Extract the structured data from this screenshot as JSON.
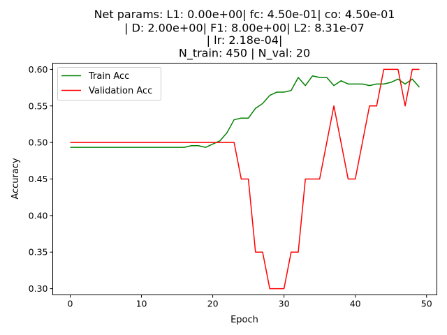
{
  "chart_data": {
    "type": "line",
    "title_lines": [
      "Net params: L1: 0.00e+00| fc: 4.50e-01| co: 4.50e-01",
      "| D: 2.00e+00| F1: 8.00e+00| L2: 8.31e-07",
      "| lr: 2.18e-04|",
      "N_train: 450 | N_val: 20"
    ],
    "xlabel": "Epoch",
    "ylabel": "Accuracy",
    "xlim": [
      -2.45,
      51.45
    ],
    "ylim": [
      0.2915,
      0.6085
    ],
    "x_ticks": [
      0,
      10,
      20,
      30,
      40,
      50
    ],
    "y_ticks": [
      0.3,
      0.35,
      0.4,
      0.45,
      0.5,
      0.55,
      0.6
    ],
    "y_tick_labels": [
      "0.30",
      "0.35",
      "0.40",
      "0.45",
      "0.50",
      "0.55",
      "0.60"
    ],
    "grid": false,
    "legend_position": "upper-left",
    "x": [
      0,
      1,
      2,
      3,
      4,
      5,
      6,
      7,
      8,
      9,
      10,
      11,
      12,
      13,
      14,
      15,
      16,
      17,
      18,
      19,
      20,
      21,
      22,
      23,
      24,
      25,
      26,
      27,
      28,
      29,
      30,
      31,
      32,
      33,
      34,
      35,
      36,
      37,
      38,
      39,
      40,
      41,
      42,
      43,
      44,
      45,
      46,
      47,
      48,
      49
    ],
    "series": [
      {
        "name": "Train Acc",
        "color": "#008000",
        "values": [
          0.4933,
          0.4933,
          0.4933,
          0.4933,
          0.4933,
          0.4933,
          0.4933,
          0.4933,
          0.4933,
          0.4933,
          0.4933,
          0.4933,
          0.4933,
          0.4933,
          0.4933,
          0.4933,
          0.4933,
          0.4956,
          0.4956,
          0.4933,
          0.4978,
          0.5022,
          0.5133,
          0.5311,
          0.5333,
          0.5333,
          0.5467,
          0.5533,
          0.5644,
          0.5689,
          0.5689,
          0.5711,
          0.5889,
          0.5778,
          0.5911,
          0.5889,
          0.5889,
          0.5778,
          0.5844,
          0.58,
          0.58,
          0.58,
          0.5778,
          0.58,
          0.58,
          0.5822,
          0.5867,
          0.58,
          0.5867,
          0.5756
        ]
      },
      {
        "name": "Validation Acc",
        "color": "#ff0000",
        "values": [
          0.5,
          0.5,
          0.5,
          0.5,
          0.5,
          0.5,
          0.5,
          0.5,
          0.5,
          0.5,
          0.5,
          0.5,
          0.5,
          0.5,
          0.5,
          0.5,
          0.5,
          0.5,
          0.5,
          0.5,
          0.5,
          0.5,
          0.5,
          0.5,
          0.45,
          0.45,
          0.35,
          0.35,
          0.3,
          0.3,
          0.3,
          0.35,
          0.35,
          0.45,
          0.45,
          0.45,
          0.5,
          0.55,
          0.5,
          0.45,
          0.45,
          0.5,
          0.55,
          0.55,
          0.6,
          0.6,
          0.6,
          0.55,
          0.6,
          0.6
        ]
      }
    ]
  }
}
